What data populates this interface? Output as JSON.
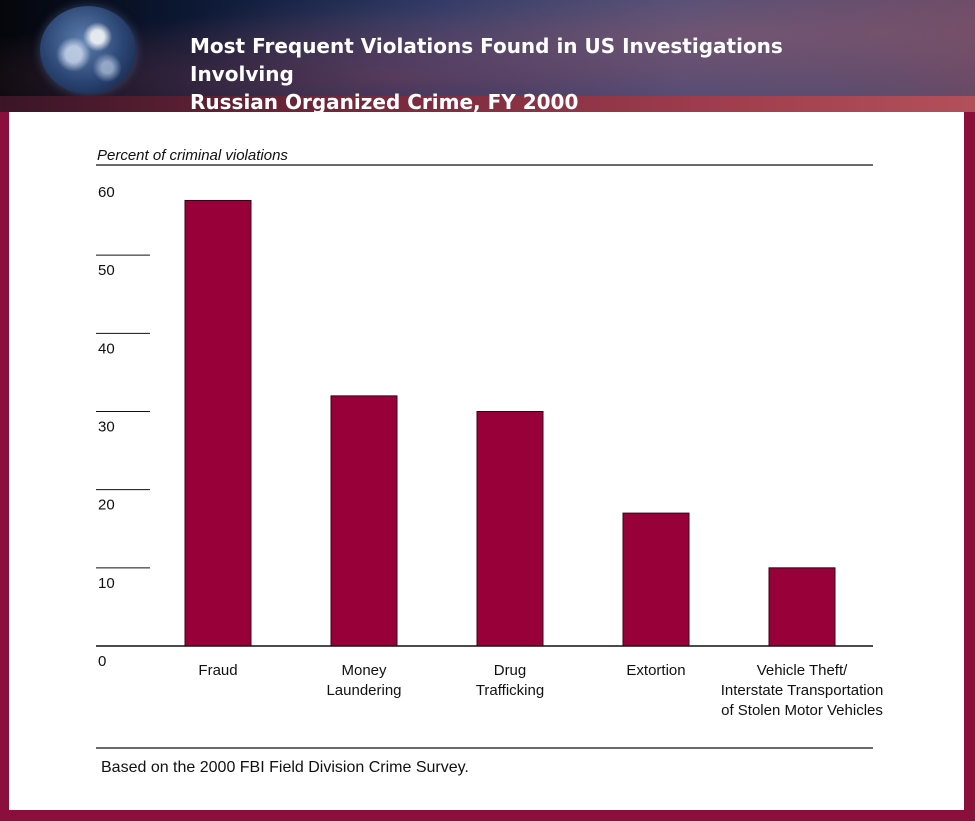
{
  "header": {
    "title_line1": "Most Frequent Violations Found in US Investigations Involving",
    "title_line2": "Russian Organized Crime, FY 2000"
  },
  "chart_data": {
    "type": "bar",
    "title": "Most Frequent Violations Found in US Investigations Involving Russian Organized Crime, FY 2000",
    "ylabel": "Percent of criminal violations",
    "xlabel": "",
    "ylim": [
      0,
      60
    ],
    "yticks": [
      0,
      10,
      20,
      30,
      40,
      50,
      60
    ],
    "categories": [
      [
        "Fraud"
      ],
      [
        "Money",
        "Laundering"
      ],
      [
        "Drug",
        "Trafficking"
      ],
      [
        "Extortion"
      ],
      [
        "Vehicle Theft/",
        "Interstate Transportation",
        "of Stolen Motor Vehicles"
      ]
    ],
    "values": [
      57,
      32,
      30,
      17,
      10
    ],
    "bar_color": "#970038",
    "grid": false,
    "source_note": "Based on the 2000 FBI Field Division Crime Survey."
  }
}
